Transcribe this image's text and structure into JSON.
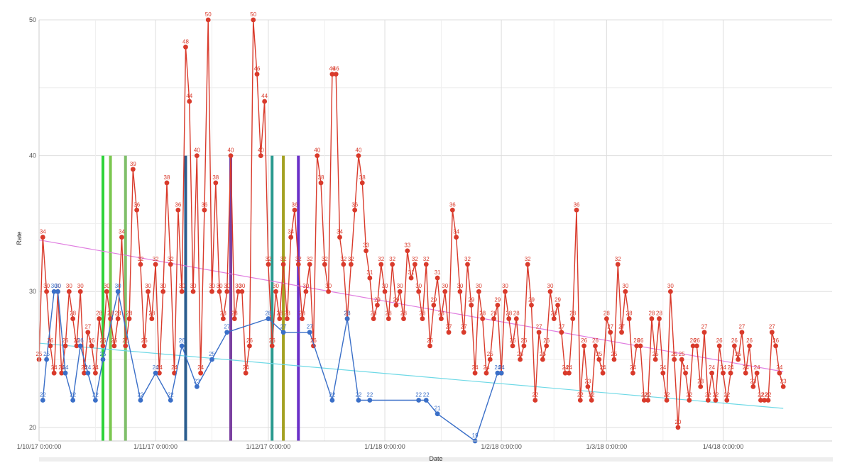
{
  "chart_data": {
    "type": "line",
    "title": "",
    "xlabel": "Date",
    "ylabel": "Rate",
    "xlim": [
      "2017-10-01",
      "2018-04-30"
    ],
    "ylim": [
      19,
      50
    ],
    "y_ticks": [
      20,
      30,
      40,
      50
    ],
    "x_ticks": [
      {
        "date": "2017-10-01",
        "label": "1/10/17 0:00:00"
      },
      {
        "date": "2017-11-01",
        "label": "1/11/17 0:00:00"
      },
      {
        "date": "2017-12-01",
        "label": "1/12/17 0:00:00"
      },
      {
        "date": "2018-01-01",
        "label": "1/1/18 0:00:00"
      },
      {
        "date": "2018-02-01",
        "label": "1/2/18 0:00:00"
      },
      {
        "date": "2018-03-01",
        "label": "1/3/18 0:00:00"
      },
      {
        "date": "2018-04-01",
        "label": "1/4/18 0:00:00"
      }
    ],
    "grid": true,
    "legend": "none",
    "series": [
      {
        "color": "#d93a2b",
        "points": [
          [
            "2017-10-01",
            25
          ],
          [
            "2017-10-02",
            34
          ],
          [
            "2017-10-03",
            30
          ],
          [
            "2017-10-04",
            26
          ],
          [
            "2017-10-05",
            24
          ],
          [
            "2017-10-06",
            30
          ],
          [
            "2017-10-07",
            24
          ],
          [
            "2017-10-08",
            26
          ],
          [
            "2017-10-09",
            30
          ],
          [
            "2017-10-10",
            28
          ],
          [
            "2017-10-11",
            26
          ],
          [
            "2017-10-12",
            30
          ],
          [
            "2017-10-13",
            24
          ],
          [
            "2017-10-14",
            27
          ],
          [
            "2017-10-15",
            26
          ],
          [
            "2017-10-16",
            24
          ],
          [
            "2017-10-17",
            28
          ],
          [
            "2017-10-18",
            26
          ],
          [
            "2017-10-19",
            30
          ],
          [
            "2017-10-20",
            28
          ],
          [
            "2017-10-21",
            26
          ],
          [
            "2017-10-22",
            28
          ],
          [
            "2017-10-23",
            34
          ],
          [
            "2017-10-24",
            26
          ],
          [
            "2017-10-25",
            28
          ],
          [
            "2017-10-26",
            39
          ],
          [
            "2017-10-27",
            36
          ],
          [
            "2017-10-28",
            32
          ],
          [
            "2017-10-29",
            26
          ],
          [
            "2017-10-30",
            30
          ],
          [
            "2017-10-31",
            28
          ],
          [
            "2017-11-01",
            32
          ],
          [
            "2017-11-02",
            24
          ],
          [
            "2017-11-03",
            30
          ],
          [
            "2017-11-04",
            38
          ],
          [
            "2017-11-05",
            32
          ],
          [
            "2017-11-06",
            24
          ],
          [
            "2017-11-07",
            36
          ],
          [
            "2017-11-08",
            30
          ],
          [
            "2017-11-09",
            48
          ],
          [
            "2017-11-10",
            44
          ],
          [
            "2017-11-11",
            30
          ],
          [
            "2017-11-12",
            40
          ],
          [
            "2017-11-13",
            24
          ],
          [
            "2017-11-14",
            36
          ],
          [
            "2017-11-15",
            50
          ],
          [
            "2017-11-16",
            30
          ],
          [
            "2017-11-17",
            38
          ],
          [
            "2017-11-18",
            30
          ],
          [
            "2017-11-19",
            28
          ],
          [
            "2017-11-20",
            30
          ],
          [
            "2017-11-21",
            40
          ],
          [
            "2017-11-22",
            28
          ],
          [
            "2017-11-23",
            30
          ],
          [
            "2017-11-24",
            30
          ],
          [
            "2017-11-25",
            24
          ],
          [
            "2017-11-26",
            26
          ],
          [
            "2017-11-27",
            50
          ],
          [
            "2017-11-28",
            46
          ],
          [
            "2017-11-29",
            40
          ],
          [
            "2017-11-30",
            44
          ],
          [
            "2017-12-01",
            32
          ],
          [
            "2017-12-02",
            26
          ],
          [
            "2017-12-03",
            30
          ],
          [
            "2017-12-04",
            28
          ],
          [
            "2017-12-05",
            32
          ],
          [
            "2017-12-06",
            28
          ],
          [
            "2017-12-07",
            34
          ],
          [
            "2017-12-08",
            36
          ],
          [
            "2017-12-09",
            32
          ],
          [
            "2017-12-10",
            28
          ],
          [
            "2017-12-11",
            30
          ],
          [
            "2017-12-12",
            32
          ],
          [
            "2017-12-13",
            26
          ],
          [
            "2017-12-14",
            40
          ],
          [
            "2017-12-15",
            38
          ],
          [
            "2017-12-16",
            32
          ],
          [
            "2017-12-17",
            30
          ],
          [
            "2017-12-18",
            46
          ],
          [
            "2017-12-19",
            46
          ],
          [
            "2017-12-20",
            34
          ],
          [
            "2017-12-21",
            32
          ],
          [
            "2017-12-22",
            28
          ],
          [
            "2017-12-23",
            32
          ],
          [
            "2017-12-24",
            36
          ],
          [
            "2017-12-25",
            40
          ],
          [
            "2017-12-26",
            38
          ],
          [
            "2017-12-27",
            33
          ],
          [
            "2017-12-28",
            31
          ],
          [
            "2017-12-29",
            28
          ],
          [
            "2017-12-30",
            29
          ],
          [
            "2017-12-31",
            32
          ],
          [
            "2018-01-01",
            30
          ],
          [
            "2018-01-02",
            28
          ],
          [
            "2018-01-03",
            32
          ],
          [
            "2018-01-04",
            29
          ],
          [
            "2018-01-05",
            30
          ],
          [
            "2018-01-06",
            28
          ],
          [
            "2018-01-07",
            33
          ],
          [
            "2018-01-08",
            31
          ],
          [
            "2018-01-09",
            32
          ],
          [
            "2018-01-10",
            30
          ],
          [
            "2018-01-11",
            28
          ],
          [
            "2018-01-12",
            32
          ],
          [
            "2018-01-13",
            26
          ],
          [
            "2018-01-14",
            29
          ],
          [
            "2018-01-15",
            31
          ],
          [
            "2018-01-16",
            28
          ],
          [
            "2018-01-17",
            30
          ],
          [
            "2018-01-18",
            27
          ],
          [
            "2018-01-19",
            36
          ],
          [
            "2018-01-20",
            34
          ],
          [
            "2018-01-21",
            30
          ],
          [
            "2018-01-22",
            27
          ],
          [
            "2018-01-23",
            32
          ],
          [
            "2018-01-24",
            29
          ],
          [
            "2018-01-25",
            24
          ],
          [
            "2018-01-26",
            30
          ],
          [
            "2018-01-27",
            28
          ],
          [
            "2018-01-28",
            24
          ],
          [
            "2018-01-29",
            25
          ],
          [
            "2018-01-30",
            28
          ],
          [
            "2018-01-31",
            29
          ],
          [
            "2018-02-01",
            24
          ],
          [
            "2018-02-02",
            30
          ],
          [
            "2018-02-03",
            28
          ],
          [
            "2018-02-04",
            26
          ],
          [
            "2018-02-05",
            28
          ],
          [
            "2018-02-06",
            25
          ],
          [
            "2018-02-07",
            26
          ],
          [
            "2018-02-08",
            32
          ],
          [
            "2018-02-09",
            29
          ],
          [
            "2018-02-10",
            22
          ],
          [
            "2018-02-11",
            27
          ],
          [
            "2018-02-12",
            25
          ],
          [
            "2018-02-13",
            26
          ],
          [
            "2018-02-14",
            30
          ],
          [
            "2018-02-15",
            28
          ],
          [
            "2018-02-16",
            29
          ],
          [
            "2018-02-17",
            27
          ],
          [
            "2018-02-18",
            24
          ],
          [
            "2018-02-19",
            24
          ],
          [
            "2018-02-20",
            28
          ],
          [
            "2018-02-21",
            36
          ],
          [
            "2018-02-22",
            22
          ],
          [
            "2018-02-23",
            26
          ],
          [
            "2018-02-24",
            23
          ],
          [
            "2018-02-25",
            22
          ],
          [
            "2018-02-26",
            26
          ],
          [
            "2018-02-27",
            25
          ],
          [
            "2018-02-28",
            24
          ],
          [
            "2018-03-01",
            28
          ],
          [
            "2018-03-02",
            27
          ],
          [
            "2018-03-03",
            25
          ],
          [
            "2018-03-04",
            32
          ],
          [
            "2018-03-05",
            27
          ],
          [
            "2018-03-06",
            30
          ],
          [
            "2018-03-07",
            28
          ],
          [
            "2018-03-08",
            24
          ],
          [
            "2018-03-09",
            26
          ],
          [
            "2018-03-10",
            26
          ],
          [
            "2018-03-11",
            22
          ],
          [
            "2018-03-12",
            22
          ],
          [
            "2018-03-13",
            28
          ],
          [
            "2018-03-14",
            25
          ],
          [
            "2018-03-15",
            28
          ],
          [
            "2018-03-16",
            24
          ],
          [
            "2018-03-17",
            22
          ],
          [
            "2018-03-18",
            30
          ],
          [
            "2018-03-19",
            25
          ],
          [
            "2018-03-20",
            20
          ],
          [
            "2018-03-21",
            25
          ],
          [
            "2018-03-22",
            24
          ],
          [
            "2018-03-23",
            22
          ],
          [
            "2018-03-24",
            26
          ],
          [
            "2018-03-25",
            26
          ],
          [
            "2018-03-26",
            23
          ],
          [
            "2018-03-27",
            27
          ],
          [
            "2018-03-28",
            22
          ],
          [
            "2018-03-29",
            24
          ],
          [
            "2018-03-30",
            22
          ],
          [
            "2018-03-31",
            26
          ],
          [
            "2018-04-01",
            24
          ],
          [
            "2018-04-02",
            22
          ],
          [
            "2018-04-03",
            24
          ],
          [
            "2018-04-04",
            26
          ],
          [
            "2018-04-05",
            25
          ],
          [
            "2018-04-06",
            27
          ],
          [
            "2018-04-07",
            24
          ],
          [
            "2018-04-08",
            26
          ],
          [
            "2018-04-09",
            23
          ],
          [
            "2018-04-10",
            24
          ],
          [
            "2018-04-11",
            22
          ],
          [
            "2018-04-12",
            22
          ],
          [
            "2018-04-13",
            22
          ],
          [
            "2018-04-14",
            27
          ],
          [
            "2018-04-15",
            26
          ],
          [
            "2018-04-16",
            24
          ],
          [
            "2018-04-17",
            23
          ]
        ]
      },
      {
        "color": "#3a6fc8",
        "points": [
          [
            "2017-10-02",
            22
          ],
          [
            "2017-10-03",
            25
          ],
          [
            "2017-10-05",
            30
          ],
          [
            "2017-10-06",
            30
          ],
          [
            "2017-10-08",
            24
          ],
          [
            "2017-10-10",
            22
          ],
          [
            "2017-10-12",
            26
          ],
          [
            "2017-10-14",
            24
          ],
          [
            "2017-10-16",
            22
          ],
          [
            "2017-10-18",
            25
          ],
          [
            "2017-10-22",
            30
          ],
          [
            "2017-10-28",
            22
          ],
          [
            "2017-11-01",
            24
          ],
          [
            "2017-11-05",
            22
          ],
          [
            "2017-11-08",
            26
          ],
          [
            "2017-11-12",
            23
          ],
          [
            "2017-11-16",
            25
          ],
          [
            "2017-11-20",
            27
          ],
          [
            "2017-12-01",
            28
          ],
          [
            "2017-12-05",
            27
          ],
          [
            "2017-12-12",
            27
          ],
          [
            "2017-12-18",
            22
          ],
          [
            "2017-12-22",
            28
          ],
          [
            "2017-12-25",
            22
          ],
          [
            "2017-12-28",
            22
          ],
          [
            "2018-01-10",
            22
          ],
          [
            "2018-01-12",
            22
          ],
          [
            "2018-01-15",
            21
          ],
          [
            "2018-01-25",
            19
          ],
          [
            "2018-01-31",
            24
          ],
          [
            "2018-02-01",
            24
          ]
        ]
      }
    ],
    "trendlines": [
      {
        "color": "#e07ee0",
        "start": [
          "2017-10-01",
          33.8
        ],
        "end": [
          "2018-04-17",
          24.1
        ]
      },
      {
        "color": "#6fd9e6",
        "start": [
          "2017-10-01",
          26.2
        ],
        "end": [
          "2018-04-17",
          21.4
        ]
      }
    ],
    "reference_bars": [
      {
        "date": "2017-10-18",
        "color": "#2fd33a"
      },
      {
        "date": "2017-10-20",
        "color": "#7ac74f"
      },
      {
        "date": "2017-10-24",
        "color": "#7fbf6a"
      },
      {
        "date": "2017-11-09",
        "color": "#2a5d8f"
      },
      {
        "date": "2017-11-21",
        "color": "#7a3fa0"
      },
      {
        "date": "2017-12-02",
        "color": "#2a9a8f"
      },
      {
        "date": "2017-12-05",
        "color": "#a3a020"
      },
      {
        "date": "2017-12-09",
        "color": "#6a2fc8"
      }
    ]
  }
}
